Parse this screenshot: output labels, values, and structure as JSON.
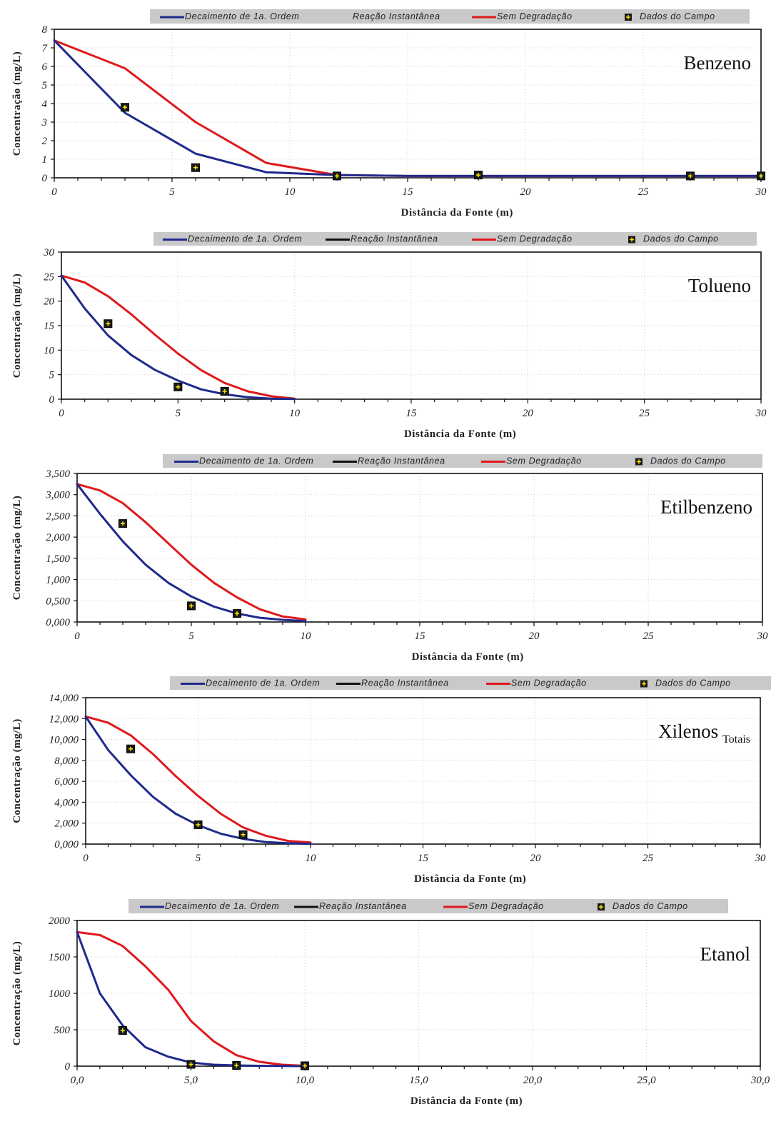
{
  "legend_labels": {
    "first_order": "Decaimento de 1a. Ordem",
    "instantaneous": "Reação Instantânea",
    "no_degradation": "Sem Degradação",
    "field": "Dados do Campo"
  },
  "colors": {
    "first_order": "#1f2a8c",
    "instantaneous": "#111111",
    "no_degradation": "#e0191c",
    "field_marker": "#1a1a1a",
    "field_cross": "#f2e200",
    "legend_bg": "#c9c9c9",
    "grid": "#cfcfcf"
  },
  "chart_data": [
    {
      "type": "line",
      "title": "Benzeno",
      "subtitle": "",
      "xlabel": "Distância da Fonte (m)",
      "ylabel": "Concentração (mg/L)",
      "xlim": [
        0,
        30
      ],
      "ylim": [
        0,
        8
      ],
      "xticks": [
        "0",
        "5",
        "10",
        "15",
        "20",
        "25",
        "30"
      ],
      "yticks": [
        "0",
        "1",
        "2",
        "3",
        "4",
        "5",
        "6",
        "7",
        "8"
      ],
      "legend_position": "top",
      "legend_instantaneous_line": false,
      "series": [
        {
          "key": "first_order",
          "name": "Decaimento de 1a. Ordem",
          "x": [
            0,
            3,
            6,
            9,
            12,
            15,
            18,
            21,
            24,
            27,
            30
          ],
          "y": [
            7.4,
            3.5,
            1.3,
            0.3,
            0.15,
            0.1,
            0.1,
            0.1,
            0.1,
            0.1,
            0.1
          ]
        },
        {
          "key": "no_degradation",
          "name": "Sem Degradação",
          "x": [
            0,
            3,
            6,
            9,
            12,
            15,
            18,
            21,
            24,
            27,
            30
          ],
          "y": [
            7.4,
            5.9,
            3.0,
            0.8,
            0.15,
            0.1,
            0.1,
            0.1,
            0.1,
            0.1,
            0.1
          ]
        }
      ],
      "field_data": {
        "x": [
          3,
          6,
          12,
          18,
          27,
          30
        ],
        "y": [
          3.8,
          0.55,
          0.1,
          0.15,
          0.1,
          0.1
        ]
      }
    },
    {
      "type": "line",
      "title": "Tolueno",
      "subtitle": "",
      "xlabel": "Distância da Fonte (m)",
      "ylabel": "Concentração (mg/L)",
      "xlim": [
        0,
        30
      ],
      "ylim": [
        0,
        30
      ],
      "xticks": [
        "0",
        "5",
        "10",
        "15",
        "20",
        "25",
        "30"
      ],
      "yticks": [
        "0",
        "5",
        "10",
        "15",
        "20",
        "25",
        "30"
      ],
      "legend_position": "top",
      "legend_instantaneous_line": true,
      "series": [
        {
          "key": "first_order",
          "name": "Decaimento de 1a. Ordem",
          "x": [
            0,
            1,
            2,
            3,
            4,
            5,
            6,
            7,
            8,
            9,
            10
          ],
          "y": [
            25.2,
            18.5,
            13.0,
            9.0,
            6.0,
            3.8,
            2.0,
            1.0,
            0.4,
            0.1,
            0.05
          ]
        },
        {
          "key": "no_degradation",
          "name": "Sem Degradação",
          "x": [
            0,
            1,
            2,
            3,
            4,
            5,
            6,
            7,
            8,
            9,
            10
          ],
          "y": [
            25.2,
            23.8,
            21.0,
            17.3,
            13.2,
            9.3,
            5.9,
            3.3,
            1.6,
            0.6,
            0.1
          ]
        }
      ],
      "field_data": {
        "x": [
          2,
          5,
          7
        ],
        "y": [
          15.4,
          2.5,
          1.6
        ]
      }
    },
    {
      "type": "line",
      "title": "Etilbenzeno",
      "subtitle": "",
      "xlabel": "Distância da Fonte (m)",
      "ylabel": "Concentração (mg/L)",
      "xlim": [
        0,
        30
      ],
      "ylim": [
        0,
        3.5
      ],
      "xticks": [
        "0",
        "5",
        "10",
        "15",
        "20",
        "25",
        "30"
      ],
      "yticks": [
        "0,000",
        "0,500",
        "1,000",
        "1,500",
        "2,000",
        "2,500",
        "3,000",
        "3,500"
      ],
      "legend_position": "top",
      "legend_instantaneous_line": true,
      "series": [
        {
          "key": "first_order",
          "name": "Decaimento de 1a. Ordem",
          "x": [
            0,
            1,
            2,
            3,
            4,
            5,
            6,
            7,
            8,
            9,
            10
          ],
          "y": [
            3.25,
            2.55,
            1.9,
            1.35,
            0.92,
            0.6,
            0.36,
            0.2,
            0.1,
            0.05,
            0.02
          ]
        },
        {
          "key": "no_degradation",
          "name": "Sem Degradação",
          "x": [
            0,
            1,
            2,
            3,
            4,
            5,
            6,
            7,
            8,
            9,
            10
          ],
          "y": [
            3.25,
            3.1,
            2.8,
            2.35,
            1.85,
            1.35,
            0.92,
            0.58,
            0.3,
            0.13,
            0.06
          ]
        }
      ],
      "field_data": {
        "x": [
          2,
          5,
          7
        ],
        "y": [
          2.32,
          0.38,
          0.2
        ]
      }
    },
    {
      "type": "line",
      "title": "Xilenos",
      "subtitle": "Totais",
      "xlabel": "Distância da Fonte (m)",
      "ylabel": "Concentração (mg/L)",
      "xlim": [
        0,
        30
      ],
      "ylim": [
        0,
        14
      ],
      "xticks": [
        "0",
        "5",
        "10",
        "15",
        "20",
        "25",
        "30"
      ],
      "yticks": [
        "0,000",
        "2,000",
        "4,000",
        "6,000",
        "8,000",
        "10,000",
        "12,000",
        "14,000"
      ],
      "legend_position": "top",
      "legend_instantaneous_line": true,
      "series": [
        {
          "key": "first_order",
          "name": "Decaimento de 1a. Ordem",
          "x": [
            0,
            1,
            2,
            3,
            4,
            5,
            6,
            7,
            8,
            9,
            10
          ],
          "y": [
            12.2,
            9.0,
            6.6,
            4.5,
            2.9,
            1.8,
            1.0,
            0.5,
            0.2,
            0.08,
            0.02
          ]
        },
        {
          "key": "no_degradation",
          "name": "Sem Degradação",
          "x": [
            0,
            1,
            2,
            3,
            4,
            5,
            6,
            7,
            8,
            9,
            10
          ],
          "y": [
            12.2,
            11.6,
            10.4,
            8.6,
            6.5,
            4.6,
            2.9,
            1.6,
            0.8,
            0.3,
            0.15
          ]
        }
      ],
      "field_data": {
        "x": [
          2,
          5,
          7
        ],
        "y": [
          9.1,
          1.85,
          0.9
        ]
      }
    },
    {
      "type": "line",
      "title": "Etanol",
      "subtitle": "",
      "xlabel": "Distância da Fonte (m)",
      "ylabel": "Concentração (mg/L)",
      "xlim": [
        0,
        30
      ],
      "ylim": [
        0,
        2000
      ],
      "xticks": [
        "0,0",
        "5,0",
        "10,0",
        "15,0",
        "20,0",
        "25,0",
        "30,0"
      ],
      "yticks": [
        "0",
        "500",
        "1000",
        "1500",
        "2000"
      ],
      "legend_position": "top",
      "legend_instantaneous_line": true,
      "series": [
        {
          "key": "first_order",
          "name": "Decaimento de 1a. Ordem",
          "x": [
            0,
            1,
            2,
            3,
            4,
            5,
            6,
            7,
            8,
            9,
            10
          ],
          "y": [
            1840,
            1000,
            560,
            260,
            130,
            50,
            20,
            10,
            5,
            2,
            0
          ]
        },
        {
          "key": "no_degradation",
          "name": "Sem Degradação",
          "x": [
            0,
            1,
            2,
            3,
            4,
            5,
            6,
            7,
            8,
            9,
            10
          ],
          "y": [
            1840,
            1800,
            1650,
            1370,
            1050,
            620,
            340,
            150,
            60,
            20,
            5
          ]
        }
      ],
      "field_data": {
        "x": [
          2,
          5,
          7,
          10
        ],
        "y": [
          490,
          25,
          10,
          5
        ]
      }
    }
  ]
}
